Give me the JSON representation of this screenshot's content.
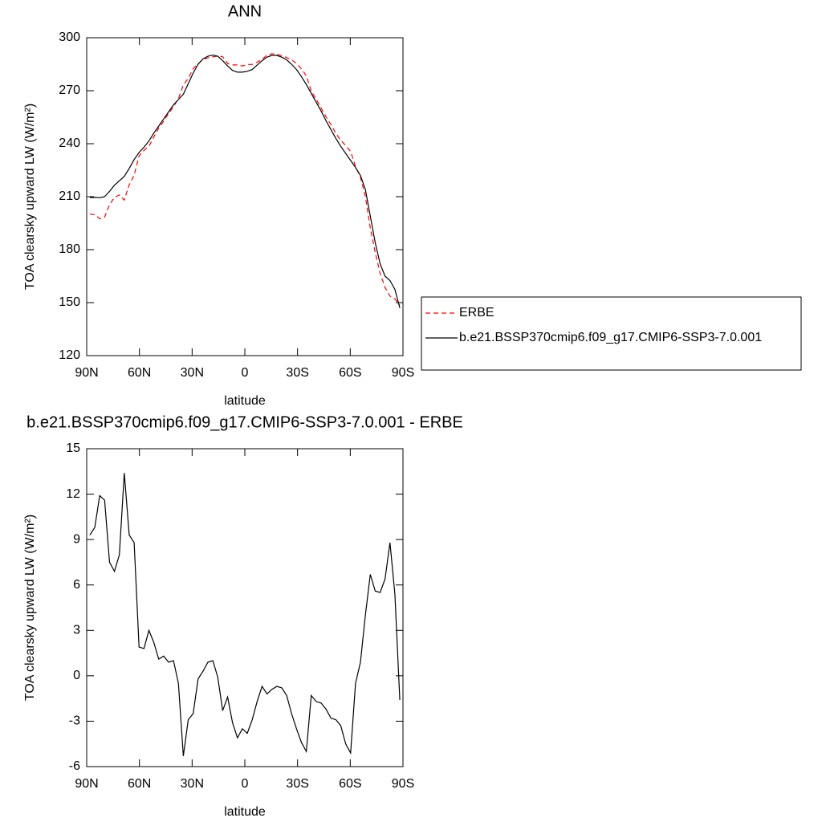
{
  "chart_data": [
    {
      "type": "line",
      "title": "ANN",
      "x_label": "latitude",
      "y_label": "TOA clearsky upward LW (W/m²)",
      "x": [
        88.2,
        85.4,
        82.6,
        79.8,
        77.0,
        74.2,
        71.4,
        68.6,
        65.8,
        63.0,
        60.2,
        57.4,
        54.6,
        51.8,
        49.0,
        46.2,
        43.4,
        40.6,
        37.8,
        35.0,
        32.2,
        29.4,
        26.6,
        23.8,
        21.0,
        18.2,
        15.4,
        12.6,
        9.8,
        7.0,
        4.2,
        1.4,
        -1.4,
        -4.2,
        -7.0,
        -9.8,
        -12.6,
        -15.4,
        -18.2,
        -21.0,
        -23.8,
        -26.6,
        -29.4,
        -32.2,
        -35.0,
        -37.8,
        -40.6,
        -43.4,
        -46.2,
        -49.0,
        -51.8,
        -54.6,
        -57.4,
        -60.2,
        -63.0,
        -65.8,
        -68.6,
        -71.4,
        -74.2,
        -77.0,
        -79.8,
        -82.6,
        -85.4,
        -88.2
      ],
      "xlim": [
        90,
        -90
      ],
      "xticks": [
        {
          "value": 90,
          "label": "90N"
        },
        {
          "value": 60,
          "label": "60N"
        },
        {
          "value": 30,
          "label": "30N"
        },
        0,
        {
          "value": -30,
          "label": "30S"
        },
        {
          "value": -60,
          "label": "60S"
        },
        {
          "value": -90,
          "label": "90S"
        }
      ],
      "ylim": [
        120,
        300
      ],
      "yticks": [
        120,
        150,
        180,
        210,
        240,
        270,
        300
      ],
      "legend": "right",
      "series": [
        {
          "name": "ERBE",
          "color": "#ff0000",
          "linestyle": "dashed",
          "values": [
            200.2,
            199.8,
            197.5,
            198.4,
            205.5,
            209.6,
            211.0,
            208.1,
            216.7,
            222.2,
            233.1,
            236.2,
            238.5,
            243.8,
            248.9,
            252.7,
            257.1,
            261.0,
            265.5,
            273.3,
            276.9,
            282.5,
            285.2,
            287.7,
            288.6,
            289.2,
            289.6,
            289.3,
            285.4,
            284.6,
            284.6,
            284.0,
            284.8,
            284.9,
            286.2,
            287.7,
            290.2,
            290.9,
            290.7,
            289.8,
            288.8,
            287.5,
            285.5,
            282.4,
            278.5,
            269.8,
            265.2,
            260.3,
            255.2,
            250.8,
            245.9,
            241.8,
            239.0,
            235.6,
            227.0,
            221.1,
            210.0,
            192.3,
            178.4,
            166.5,
            158.6,
            153.7,
            152.1,
            148.6
          ]
        },
        {
          "name": "b.e21.BSSP370cmip6.f09_g17.CMIP6-SSP3-7.0.001",
          "color": "#000000",
          "linestyle": "solid",
          "values": [
            209.5,
            209.6,
            209.4,
            210,
            213,
            216.5,
            219,
            221.5,
            226,
            231,
            235,
            238,
            241.5,
            246,
            250,
            254,
            258,
            262,
            265,
            268,
            274,
            280,
            285,
            288,
            289.5,
            290.2,
            289.5,
            287,
            284,
            281.5,
            280.5,
            280.5,
            281,
            282,
            284.5,
            287,
            289,
            290,
            290,
            289,
            287.5,
            285,
            282,
            278,
            273.5,
            268.5,
            263.5,
            258.5,
            253,
            248,
            243,
            238.5,
            234.5,
            230.5,
            226.5,
            222,
            214,
            199,
            184,
            172,
            165,
            162.5,
            157.5,
            147
          ]
        }
      ]
    },
    {
      "type": "line",
      "title": "b.e21.BSSP370cmip6.f09_g17.CMIP6-SSP3-7.0.001 - ERBE",
      "x_label": "latitude",
      "y_label": "TOA clearsky upward LW (W/m²)",
      "x": [
        88.2,
        85.4,
        82.6,
        79.8,
        77.0,
        74.2,
        71.4,
        68.6,
        65.8,
        63.0,
        60.2,
        57.4,
        54.6,
        51.8,
        49.0,
        46.2,
        43.4,
        40.6,
        37.8,
        35.0,
        32.2,
        29.4,
        26.6,
        23.8,
        21.0,
        18.2,
        15.4,
        12.6,
        9.8,
        7.0,
        4.2,
        1.4,
        -1.4,
        -4.2,
        -7.0,
        -9.8,
        -12.6,
        -15.4,
        -18.2,
        -21.0,
        -23.8,
        -26.6,
        -29.4,
        -32.2,
        -35.0,
        -37.8,
        -40.6,
        -43.4,
        -46.2,
        -49.0,
        -51.8,
        -54.6,
        -57.4,
        -60.2,
        -63.0,
        -65.8,
        -68.6,
        -71.4,
        -74.2,
        -77.0,
        -79.8,
        -82.6,
        -85.4,
        -88.2
      ],
      "xlim": [
        90,
        -90
      ],
      "xticks": [
        {
          "value": 90,
          "label": "90N"
        },
        {
          "value": 60,
          "label": "60N"
        },
        {
          "value": 30,
          "label": "30N"
        },
        0,
        {
          "value": -30,
          "label": "30S"
        },
        {
          "value": -60,
          "label": "60S"
        },
        {
          "value": -90,
          "label": "90S"
        }
      ],
      "ylim": [
        -6,
        15
      ],
      "yticks": [
        -6,
        -3,
        0,
        3,
        6,
        9,
        12,
        15
      ],
      "color": "#000000",
      "values": [
        9.3,
        9.8,
        11.9,
        11.6,
        7.5,
        6.9,
        8.0,
        13.4,
        9.3,
        8.8,
        1.9,
        1.8,
        3.0,
        2.2,
        1.1,
        1.3,
        0.9,
        1.0,
        -0.5,
        -5.3,
        -2.9,
        -2.5,
        -0.2,
        0.3,
        0.9,
        1.0,
        -0.1,
        -2.3,
        -1.4,
        -3.1,
        -4.1,
        -3.5,
        -3.8,
        -2.9,
        -1.7,
        -0.7,
        -1.2,
        -0.9,
        -0.7,
        -0.8,
        -1.3,
        -2.5,
        -3.5,
        -4.4,
        -5.0,
        -1.3,
        -1.7,
        -1.8,
        -2.2,
        -2.8,
        -2.9,
        -3.3,
        -4.5,
        -5.1,
        -0.5,
        0.9,
        4.0,
        6.7,
        5.6,
        5.5,
        6.4,
        8.8,
        5.4,
        -1.6
      ]
    }
  ]
}
